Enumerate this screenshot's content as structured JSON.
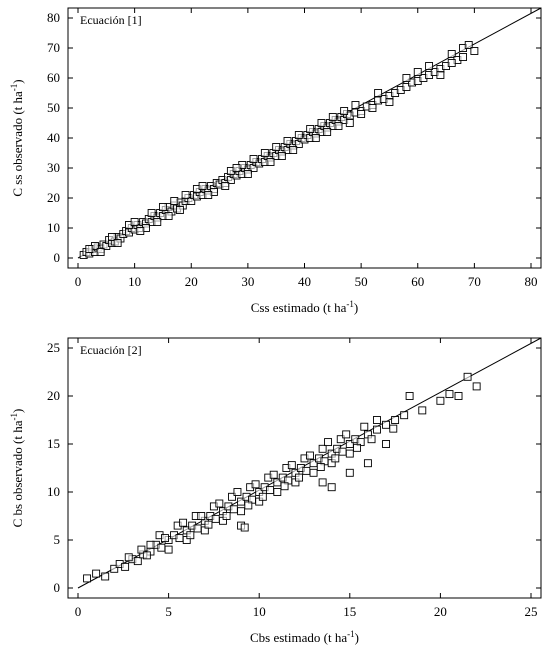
{
  "chart_data": [
    {
      "type": "scatter",
      "title": "Ecuación [1]",
      "xlabel": "Css estimado (t ha",
      "xlabel_sup": "-1",
      "xlabel_end": ")",
      "ylabel": "C ss observado (t ha",
      "ylabel_sup": "-1",
      "ylabel_end": ")",
      "xlim": [
        0,
        80
      ],
      "ylim": [
        0,
        80
      ],
      "xticks": [
        0,
        10,
        20,
        30,
        40,
        50,
        60,
        70,
        80
      ],
      "yticks": [
        0,
        10,
        20,
        30,
        40,
        50,
        60,
        70,
        80
      ],
      "reference_line": [
        [
          0,
          0
        ],
        [
          80,
          80
        ]
      ],
      "points": [
        [
          1,
          1
        ],
        [
          1.5,
          2
        ],
        [
          2,
          1.5
        ],
        [
          2.5,
          3
        ],
        [
          3,
          2
        ],
        [
          3.5,
          3.5
        ],
        [
          4,
          3
        ],
        [
          4.5,
          4.5
        ],
        [
          5,
          4
        ],
        [
          5.5,
          6
        ],
        [
          6,
          5
        ],
        [
          6.5,
          5.5
        ],
        [
          7,
          7
        ],
        [
          7.5,
          6.5
        ],
        [
          8,
          8
        ],
        [
          8.5,
          9
        ],
        [
          9,
          8.5
        ],
        [
          9.5,
          10
        ],
        [
          10,
          9.5
        ],
        [
          10.5,
          11
        ],
        [
          11,
          10
        ],
        [
          11.5,
          12
        ],
        [
          12,
          11.5
        ],
        [
          12.5,
          13
        ],
        [
          13,
          12
        ],
        [
          13.5,
          14
        ],
        [
          14,
          13.5
        ],
        [
          14.5,
          15
        ],
        [
          15,
          14
        ],
        [
          15.5,
          16
        ],
        [
          16,
          17
        ],
        [
          16.5,
          15.5
        ],
        [
          17,
          17.5
        ],
        [
          17.5,
          16.5
        ],
        [
          18,
          18.5
        ],
        [
          18.5,
          17.5
        ],
        [
          19,
          19
        ],
        [
          19.5,
          20
        ],
        [
          20,
          19
        ],
        [
          20.5,
          21
        ],
        [
          21,
          20.5
        ],
        [
          21.5,
          22
        ],
        [
          22,
          21
        ],
        [
          22.5,
          23
        ],
        [
          23,
          22.5
        ],
        [
          23.5,
          24
        ],
        [
          24,
          23
        ],
        [
          24.5,
          25
        ],
        [
          25,
          24.5
        ],
        [
          25.5,
          26
        ],
        [
          26,
          25
        ],
        [
          26.5,
          27
        ],
        [
          27,
          26
        ],
        [
          27.5,
          28
        ],
        [
          28,
          27.5
        ],
        [
          28.5,
          29
        ],
        [
          29,
          28
        ],
        [
          29.5,
          30
        ],
        [
          30,
          29.5
        ],
        [
          30.5,
          31
        ],
        [
          31,
          30
        ],
        [
          31.5,
          32
        ],
        [
          32,
          31.5
        ],
        [
          32.5,
          33
        ],
        [
          33,
          32
        ],
        [
          33.5,
          34
        ],
        [
          34,
          33.5
        ],
        [
          34.5,
          35
        ],
        [
          35,
          34
        ],
        [
          35.5,
          36
        ],
        [
          36,
          35.5
        ],
        [
          36.5,
          37
        ],
        [
          37,
          36
        ],
        [
          37.5,
          38
        ],
        [
          38,
          37.5
        ],
        [
          38.5,
          39
        ],
        [
          39,
          38
        ],
        [
          39.5,
          40
        ],
        [
          40,
          39.5
        ],
        [
          40.5,
          41
        ],
        [
          41,
          40
        ],
        [
          41.5,
          42
        ],
        [
          42,
          41.5
        ],
        [
          42.5,
          43
        ],
        [
          43,
          42
        ],
        [
          43.5,
          44
        ],
        [
          44,
          43.5
        ],
        [
          44.5,
          45
        ],
        [
          45,
          44
        ],
        [
          45.5,
          46
        ],
        [
          46,
          45.5
        ],
        [
          46.5,
          47
        ],
        [
          47,
          46
        ],
        [
          47.5,
          48
        ],
        [
          48,
          47.5
        ],
        [
          49,
          48.5
        ],
        [
          50,
          49
        ],
        [
          51,
          50.5
        ],
        [
          52,
          51
        ],
        [
          53,
          52.5
        ],
        [
          54,
          53
        ],
        [
          55,
          54
        ],
        [
          56,
          55
        ],
        [
          57,
          56
        ],
        [
          58,
          57
        ],
        [
          59,
          58.5
        ],
        [
          60,
          59
        ],
        [
          61,
          60
        ],
        [
          62,
          61
        ],
        [
          63,
          62
        ],
        [
          64,
          63
        ],
        [
          65,
          64
        ],
        [
          66,
          68
        ],
        [
          67,
          66
        ],
        [
          68,
          70
        ],
        [
          69,
          71
        ],
        [
          70,
          69
        ],
        [
          3,
          4
        ],
        [
          6,
          7
        ],
        [
          9,
          11
        ],
        [
          12,
          10
        ],
        [
          15,
          17
        ],
        [
          18,
          16
        ],
        [
          21,
          23
        ],
        [
          24,
          22
        ],
        [
          27,
          29
        ],
        [
          30,
          28
        ],
        [
          33,
          35
        ],
        [
          36,
          34
        ],
        [
          39,
          41
        ],
        [
          42,
          40
        ],
        [
          45,
          47
        ],
        [
          48,
          45
        ],
        [
          10,
          12
        ],
        [
          14,
          12
        ],
        [
          17,
          19
        ],
        [
          22,
          24
        ],
        [
          26,
          24
        ],
        [
          29,
          31
        ],
        [
          34,
          32
        ],
        [
          37,
          39
        ],
        [
          41,
          43
        ],
        [
          44,
          42
        ],
        [
          47,
          49
        ],
        [
          50,
          48
        ],
        [
          53,
          55
        ],
        [
          55,
          52
        ],
        [
          58,
          60
        ],
        [
          60,
          62
        ],
        [
          62,
          64
        ],
        [
          64,
          61
        ],
        [
          66,
          65
        ],
        [
          68,
          67
        ],
        [
          2,
          3
        ],
        [
          4,
          2
        ],
        [
          7,
          5
        ],
        [
          11,
          9
        ],
        [
          13,
          15
        ],
        [
          16,
          14
        ],
        [
          19,
          21
        ],
        [
          23,
          21
        ],
        [
          28,
          30
        ],
        [
          31,
          33
        ],
        [
          35,
          37
        ],
        [
          38,
          36
        ],
        [
          43,
          45
        ],
        [
          46,
          44
        ],
        [
          49,
          51
        ],
        [
          52,
          50
        ]
      ]
    },
    {
      "type": "scatter",
      "title": "Ecuación [2]",
      "xlabel": "Cbs estimado (t ha",
      "xlabel_sup": "-1",
      "xlabel_end": ")",
      "ylabel": "C bs observado (t ha",
      "ylabel_sup": "-1",
      "ylabel_end": ")",
      "xlim": [
        0,
        25
      ],
      "ylim": [
        0,
        25
      ],
      "xticks": [
        0,
        5,
        10,
        15,
        20,
        25
      ],
      "yticks": [
        0,
        5,
        10,
        15,
        20,
        25
      ],
      "reference_line": [
        [
          0,
          0
        ],
        [
          25,
          25
        ]
      ],
      "points": [
        [
          0.5,
          1
        ],
        [
          1,
          1.5
        ],
        [
          1.5,
          1.2
        ],
        [
          2,
          2
        ],
        [
          2.3,
          2.5
        ],
        [
          2.6,
          2.2
        ],
        [
          3,
          3
        ],
        [
          3.3,
          2.8
        ],
        [
          3.6,
          3.5
        ],
        [
          4,
          3.8
        ],
        [
          4.3,
          4.5
        ],
        [
          4.6,
          4.2
        ],
        [
          5,
          5
        ],
        [
          5.3,
          5.5
        ],
        [
          5.6,
          5.2
        ],
        [
          6,
          6
        ],
        [
          6.3,
          6.5
        ],
        [
          6.6,
          6.2
        ],
        [
          7,
          7
        ],
        [
          7.3,
          7.5
        ],
        [
          7.6,
          7.2
        ],
        [
          8,
          8
        ],
        [
          8.3,
          8.5
        ],
        [
          8.6,
          8.2
        ],
        [
          9,
          9
        ],
        [
          9.3,
          9.5
        ],
        [
          9.6,
          9.2
        ],
        [
          10,
          10
        ],
        [
          10.3,
          10.5
        ],
        [
          10.6,
          10.2
        ],
        [
          11,
          11
        ],
        [
          11.3,
          11.5
        ],
        [
          11.6,
          11.2
        ],
        [
          12,
          12
        ],
        [
          12.3,
          12.5
        ],
        [
          12.6,
          12.2
        ],
        [
          13,
          13
        ],
        [
          13.3,
          13.5
        ],
        [
          13.6,
          13.2
        ],
        [
          14,
          14
        ],
        [
          14.3,
          14.5
        ],
        [
          14.6,
          14.2
        ],
        [
          15,
          15
        ],
        [
          15.3,
          15.5
        ],
        [
          15.6,
          15.2
        ],
        [
          16,
          16
        ],
        [
          16.5,
          16.5
        ],
        [
          17,
          17
        ],
        [
          17.5,
          17.5
        ],
        [
          18,
          18
        ],
        [
          18.3,
          20
        ],
        [
          19,
          18.5
        ],
        [
          20,
          19.5
        ],
        [
          20.5,
          20.2
        ],
        [
          21,
          20
        ],
        [
          21.5,
          22
        ],
        [
          22,
          21
        ],
        [
          4.5,
          5.5
        ],
        [
          5.5,
          6.5
        ],
        [
          6.5,
          7.5
        ],
        [
          7.5,
          8.5
        ],
        [
          8.5,
          9.5
        ],
        [
          9.5,
          10.5
        ],
        [
          10.5,
          11.5
        ],
        [
          11.5,
          12.5
        ],
        [
          12.5,
          13.5
        ],
        [
          13.5,
          14.5
        ],
        [
          14.5,
          15.5
        ],
        [
          5,
          4
        ],
        [
          6,
          5
        ],
        [
          7,
          6
        ],
        [
          8,
          7
        ],
        [
          9,
          8
        ],
        [
          10,
          9
        ],
        [
          11,
          10
        ],
        [
          12,
          11
        ],
        [
          13,
          12
        ],
        [
          14,
          13
        ],
        [
          15,
          14
        ],
        [
          9,
          6.5
        ],
        [
          9.2,
          6.3
        ],
        [
          13.5,
          11
        ],
        [
          14,
          10.5
        ],
        [
          15,
          12
        ],
        [
          16,
          13
        ],
        [
          17,
          15
        ],
        [
          3.5,
          4
        ],
        [
          4,
          4.5
        ],
        [
          6.8,
          7.5
        ],
        [
          8.8,
          10
        ],
        [
          10.8,
          11.8
        ],
        [
          12.8,
          13.8
        ],
        [
          14.8,
          16
        ],
        [
          16.5,
          17.5
        ],
        [
          5.8,
          6.8
        ],
        [
          7.8,
          8.8
        ],
        [
          9.8,
          10.8
        ],
        [
          11.8,
          12.8
        ],
        [
          13.8,
          15.2
        ],
        [
          15.8,
          16.8
        ],
        [
          6.2,
          5.5
        ],
        [
          8.2,
          7.5
        ],
        [
          10.2,
          9.5
        ],
        [
          12.2,
          11.5
        ],
        [
          14.2,
          13.5
        ],
        [
          16.2,
          15.5
        ],
        [
          2.8,
          3.2
        ],
        [
          3.8,
          3.4
        ],
        [
          4.8,
          5.2
        ],
        [
          7.2,
          6.6
        ],
        [
          9.4,
          8.6
        ],
        [
          11.4,
          10.6
        ],
        [
          13.4,
          12.6
        ],
        [
          15.4,
          14.6
        ],
        [
          17.4,
          16.6
        ]
      ]
    }
  ]
}
